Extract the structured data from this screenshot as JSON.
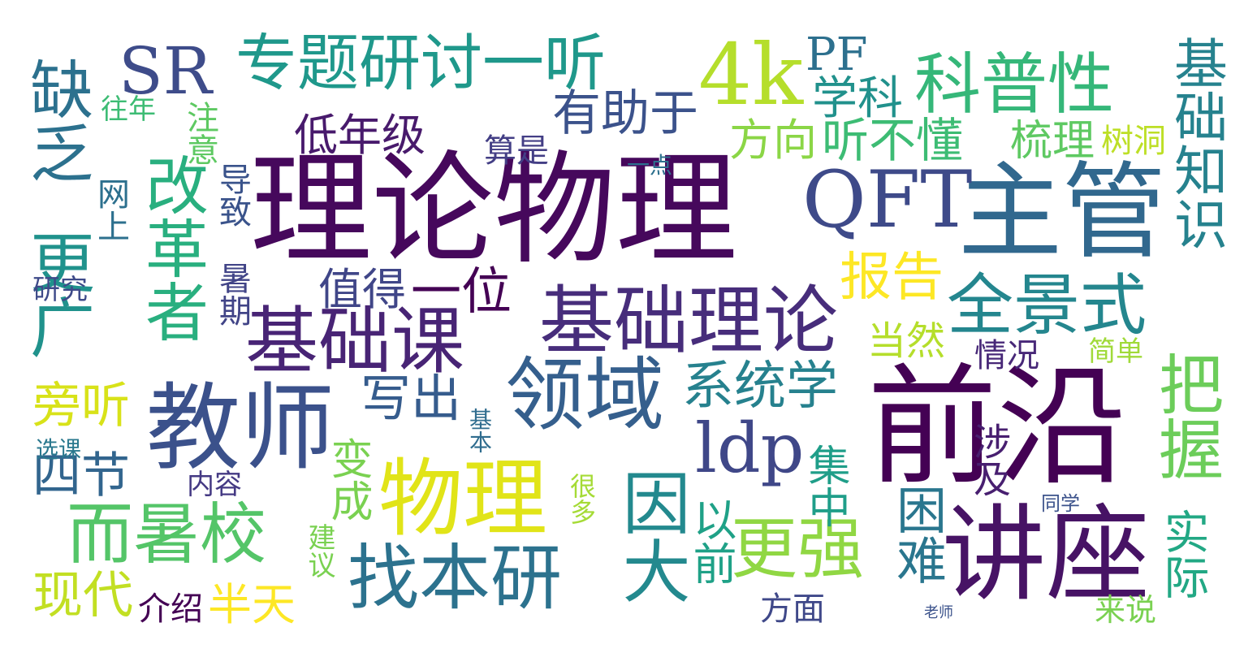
{
  "word_cloud": {
    "words": [
      {
        "text": "理论物理",
        "color": "#46085c"
      },
      {
        "text": "前沿",
        "color": "#440154"
      },
      {
        "text": "主管",
        "color": "#31688e"
      },
      {
        "text": "讲座",
        "color": "#471365"
      },
      {
        "text": "教师",
        "color": "#3b518b"
      },
      {
        "text": "QFT",
        "color": "#3e4a89"
      },
      {
        "text": "物理",
        "color": "#e1e418"
      },
      {
        "text": "基础理论",
        "color": "#472d7b"
      },
      {
        "text": "基础课",
        "color": "#482475"
      },
      {
        "text": "领域",
        "color": "#355f8d"
      },
      {
        "text": "4k",
        "color": "#b5de2b"
      },
      {
        "text": "专题研讨一听",
        "color": "#1f988b"
      },
      {
        "text": "科普性",
        "color": "#35b779"
      },
      {
        "text": "找本研",
        "color": "#2c728e"
      },
      {
        "text": "全景式",
        "color": "#24868e"
      },
      {
        "text": "ldp",
        "color": "#3f4788"
      },
      {
        "text": "SR",
        "color": "#3e4c8a"
      },
      {
        "text": "而暑校",
        "color": "#54c568"
      },
      {
        "text": "更强",
        "color": "#90d743"
      },
      {
        "text": "因大",
        "color": "#23898e"
      },
      {
        "text": "有助于",
        "color": "#3b528b"
      },
      {
        "text": "改革者",
        "color": "#29af7f"
      },
      {
        "text": "缺乏",
        "color": "#2c718e"
      },
      {
        "text": "更广",
        "color": "#20928c"
      },
      {
        "text": "把握",
        "color": "#6ccd5a"
      },
      {
        "text": "基础知识",
        "color": "#26828e"
      },
      {
        "text": "系统学",
        "color": "#26818e"
      },
      {
        "text": "听不懂",
        "color": "#3dbc74"
      },
      {
        "text": "方向",
        "color": "#8bd646"
      },
      {
        "text": "梳理",
        "color": "#5ec962"
      },
      {
        "text": "树洞",
        "color": "#bddf26"
      },
      {
        "text": "学科",
        "color": "#21918c"
      },
      {
        "text": "PF",
        "color": "#2d708e"
      },
      {
        "text": "低年级",
        "color": "#481a6c"
      },
      {
        "text": "一位",
        "color": "#440154"
      },
      {
        "text": "值得",
        "color": "#404688"
      },
      {
        "text": "报告",
        "color": "#fde725"
      },
      {
        "text": "写出",
        "color": "#365c8d"
      },
      {
        "text": "当然",
        "color": "#b5de2b"
      },
      {
        "text": "情况",
        "color": "#482878"
      },
      {
        "text": "简单",
        "color": "#a0da39"
      },
      {
        "text": "旁听",
        "color": "#d8e219"
      },
      {
        "text": "四节",
        "color": "#32658e"
      },
      {
        "text": "现代",
        "color": "#c2df23"
      },
      {
        "text": "半天",
        "color": "#fde725"
      },
      {
        "text": "介绍",
        "color": "#440154"
      },
      {
        "text": "方面",
        "color": "#3f4889"
      },
      {
        "text": "来说",
        "color": "#7ad151"
      },
      {
        "text": "困难",
        "color": "#2a768e"
      },
      {
        "text": "实际",
        "color": "#22a884"
      },
      {
        "text": "以前",
        "color": "#1fa187"
      },
      {
        "text": "变成",
        "color": "#7ad151"
      },
      {
        "text": "集中",
        "color": "#1f9e89"
      },
      {
        "text": "涉及",
        "color": "#481f70"
      },
      {
        "text": "注意",
        "color": "#5ec962"
      },
      {
        "text": "往年",
        "color": "#3dbc74"
      },
      {
        "text": "算是",
        "color": "#433e85"
      },
      {
        "text": "一点",
        "color": "#2d708e"
      },
      {
        "text": "网上",
        "color": "#2d708e"
      },
      {
        "text": "导致",
        "color": "#3a538b"
      },
      {
        "text": "研究",
        "color": "#3e4a89"
      },
      {
        "text": "暑期",
        "color": "#414487"
      },
      {
        "text": "选课",
        "color": "#2a788e"
      },
      {
        "text": "内容",
        "color": "#443983"
      },
      {
        "text": "基本",
        "color": "#2f6c8e"
      },
      {
        "text": "很多",
        "color": "#a5db36"
      },
      {
        "text": "建议",
        "color": "#7ad151"
      },
      {
        "text": "同学",
        "color": "#3b528b"
      },
      {
        "text": "老师",
        "color": "#3b528b"
      }
    ]
  }
}
